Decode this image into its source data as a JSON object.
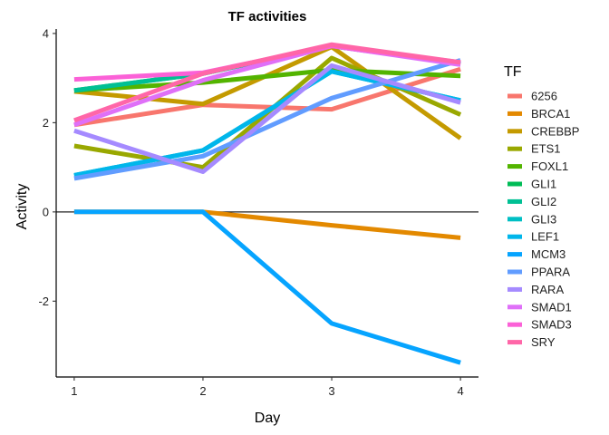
{
  "chart_data": {
    "type": "line",
    "title": "TF activities",
    "xlabel": "Day",
    "ylabel": "Activity",
    "x": [
      1,
      2,
      3,
      4
    ],
    "xlim": [
      0.86,
      4.14
    ],
    "ylim": [
      -3.7,
      4.1
    ],
    "yticks": [
      4,
      2,
      0,
      -2
    ],
    "ytick_labels": [
      "4",
      "2",
      "0",
      "-2"
    ],
    "xtick_labels": [
      "1",
      "2",
      "3",
      "4"
    ],
    "hline": 0,
    "legend_title": "TF",
    "legend_position": "right",
    "series": [
      {
        "name": "6256",
        "color": "#F8766D",
        "values": [
          1.95,
          2.4,
          2.3,
          3.2
        ]
      },
      {
        "name": "BRCA1",
        "color": "#E38900",
        "values": [
          0.0,
          0.0,
          -0.3,
          -0.58
        ]
      },
      {
        "name": "CREBBP",
        "color": "#C49A00",
        "values": [
          2.7,
          2.42,
          3.7,
          1.65
        ]
      },
      {
        "name": "ETS1",
        "color": "#99A800",
        "values": [
          1.48,
          1.0,
          3.45,
          2.18
        ]
      },
      {
        "name": "FOXL1",
        "color": "#53B400",
        "values": [
          2.72,
          2.9,
          3.18,
          3.05
        ]
      },
      {
        "name": "GLI1",
        "color": "#00BC56",
        "values": [
          2.72,
          3.1,
          3.72,
          3.32
        ]
      },
      {
        "name": "GLI2",
        "color": "#00C094",
        "values": [
          2.72,
          3.1,
          3.72,
          3.32
        ]
      },
      {
        "name": "GLI3",
        "color": "#00BFC4",
        "values": [
          0.82,
          1.38,
          3.15,
          2.5
        ]
      },
      {
        "name": "LEF1",
        "color": "#00B6EB",
        "values": [
          0.82,
          1.38,
          3.15,
          2.5
        ]
      },
      {
        "name": "MCM3",
        "color": "#06A4FF",
        "values": [
          0.0,
          0.0,
          -2.5,
          -3.38
        ]
      },
      {
        "name": "PPARA",
        "color": "#619CFF",
        "values": [
          0.75,
          1.25,
          2.55,
          3.4
        ]
      },
      {
        "name": "RARA",
        "color": "#A58AFF",
        "values": [
          1.82,
          0.9,
          3.28,
          2.45
        ]
      },
      {
        "name": "SMAD1",
        "color": "#DF70F8",
        "values": [
          1.95,
          2.95,
          3.72,
          3.3
        ]
      },
      {
        "name": "SMAD3",
        "color": "#FB61D7",
        "values": [
          2.97,
          3.12,
          3.72,
          3.35
        ]
      },
      {
        "name": "SRY",
        "color": "#FF66A8",
        "values": [
          2.05,
          3.1,
          3.75,
          3.35
        ]
      }
    ]
  }
}
